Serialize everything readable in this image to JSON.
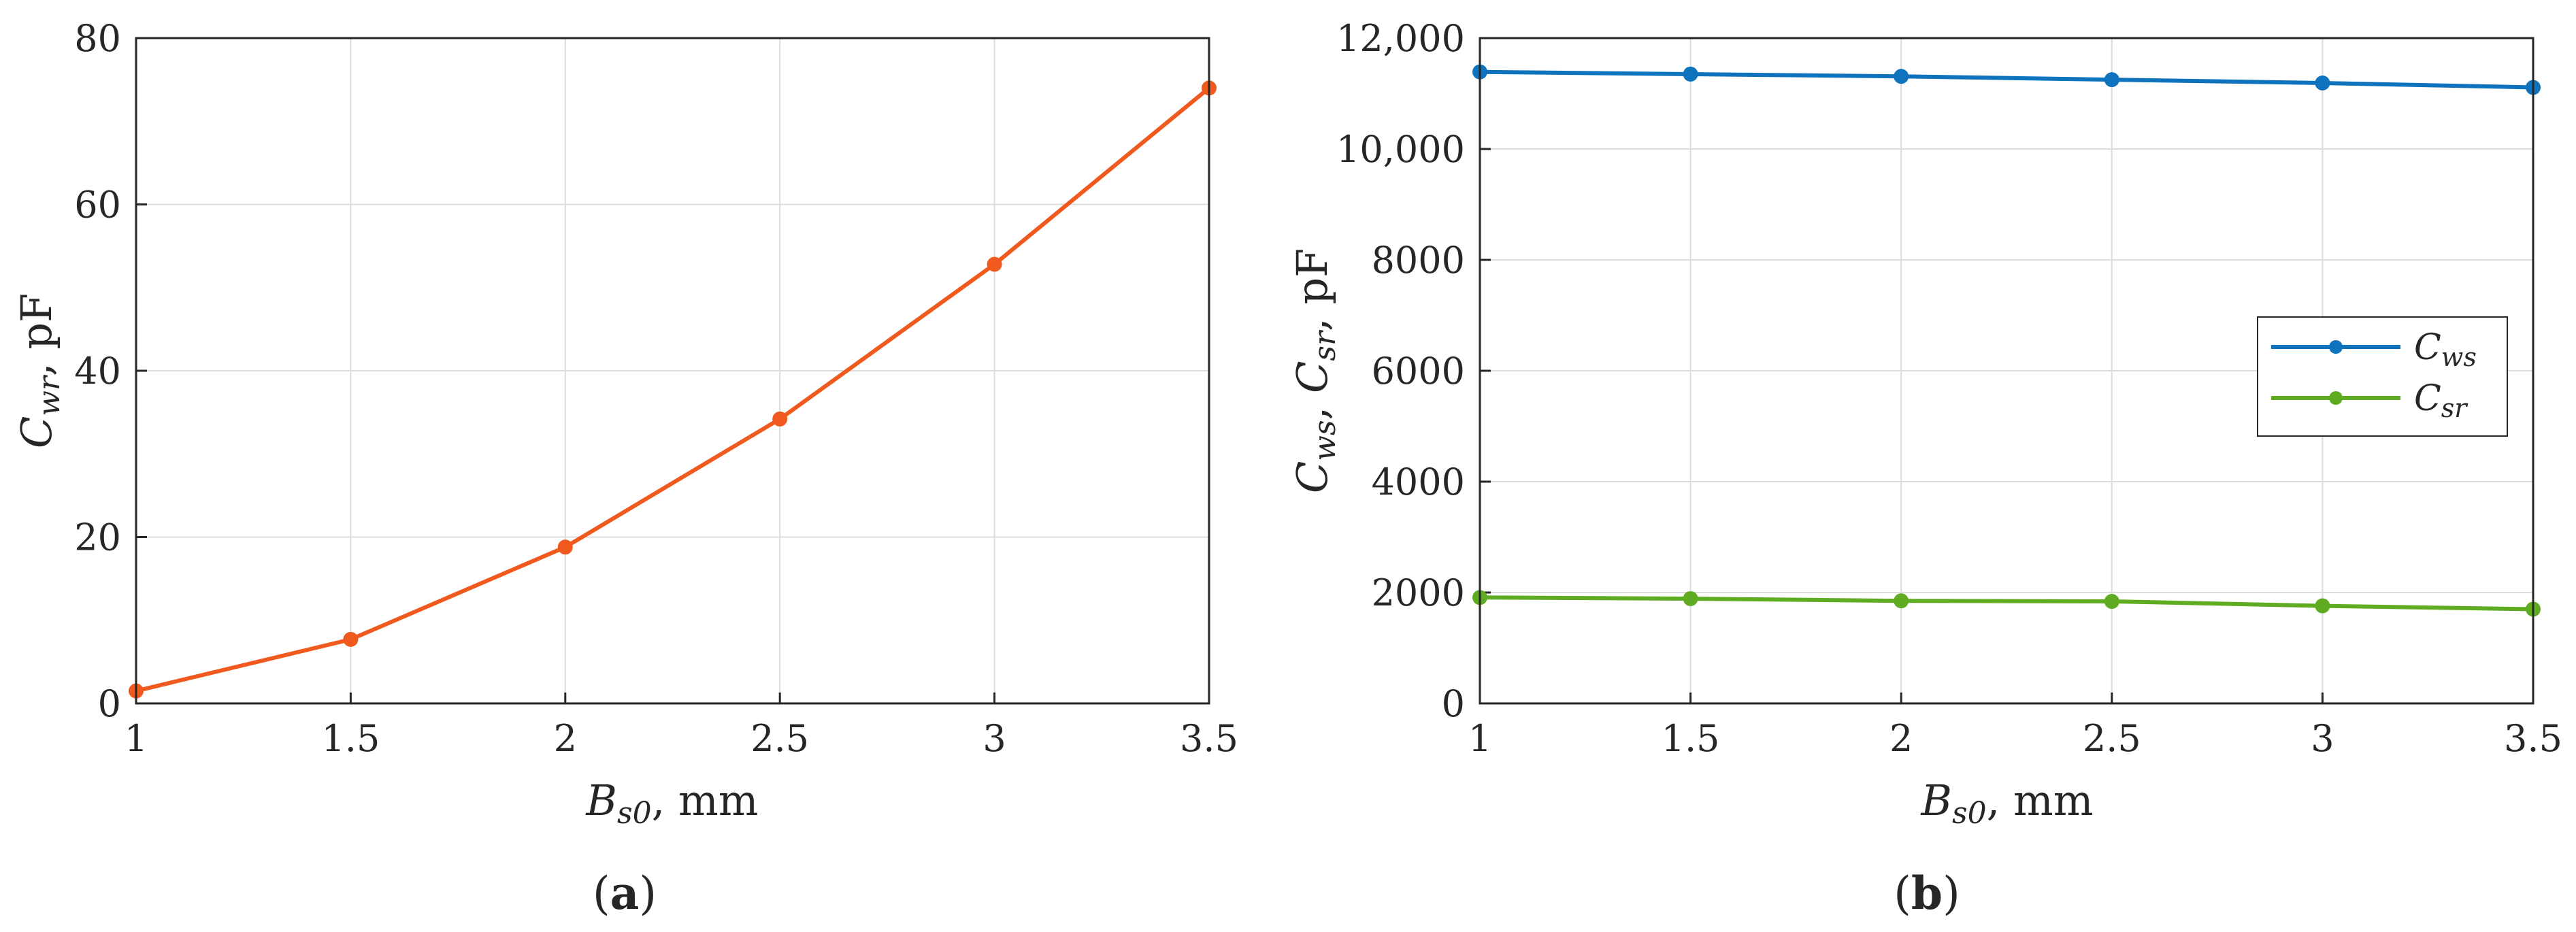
{
  "chart_data": [
    {
      "type": "line",
      "panel_label": "a",
      "x": [
        1,
        1.5,
        2,
        2.5,
        3,
        3.5
      ],
      "xlim": [
        1,
        3.5
      ],
      "ylim": [
        0,
        80
      ],
      "xticks": [
        "1",
        "1.5",
        "2",
        "2.5",
        "3",
        "3.5"
      ],
      "yticks": [
        "0",
        "20",
        "40",
        "60",
        "80"
      ],
      "xlabel": {
        "symbol": "B",
        "subscript": "s0",
        "suffix": ", mm"
      },
      "ylabel": {
        "symbol": "C",
        "subscript": "wr",
        "suffix": ", pF"
      },
      "grid": true,
      "series": [
        {
          "values": [
            1.5,
            7.7,
            18.8,
            34.2,
            52.8,
            74.0
          ],
          "color": "#f05a1e"
        }
      ]
    },
    {
      "type": "line",
      "panel_label": "b",
      "x": [
        1,
        1.5,
        2,
        2.5,
        3,
        3.5
      ],
      "xlim": [
        1,
        3.5
      ],
      "ylim": [
        0,
        12000
      ],
      "xticks": [
        "1",
        "1.5",
        "2",
        "2.5",
        "3",
        "3.5"
      ],
      "yticks": [
        "0",
        "2000",
        "4000",
        "6000",
        "8000",
        "10,000",
        "12,000"
      ],
      "xlabel": {
        "symbol": "B",
        "subscript": "s0",
        "suffix": ", mm"
      },
      "ylabel": {
        "sym1": "C",
        "sub1": "ws",
        "sep": ", ",
        "sym2": "C",
        "sub2": "sr",
        "suffix": ", pF"
      },
      "grid": true,
      "legend_position": "center-right",
      "series": [
        {
          "name_symbol": "C",
          "name_subscript": "ws",
          "values": [
            11390,
            11350,
            11310,
            11250,
            11190,
            11110
          ],
          "color": "#0f72bd"
        },
        {
          "name_symbol": "C",
          "name_subscript": "sr",
          "values": [
            1910,
            1890,
            1850,
            1840,
            1760,
            1700
          ],
          "color": "#5fac22"
        }
      ]
    }
  ]
}
